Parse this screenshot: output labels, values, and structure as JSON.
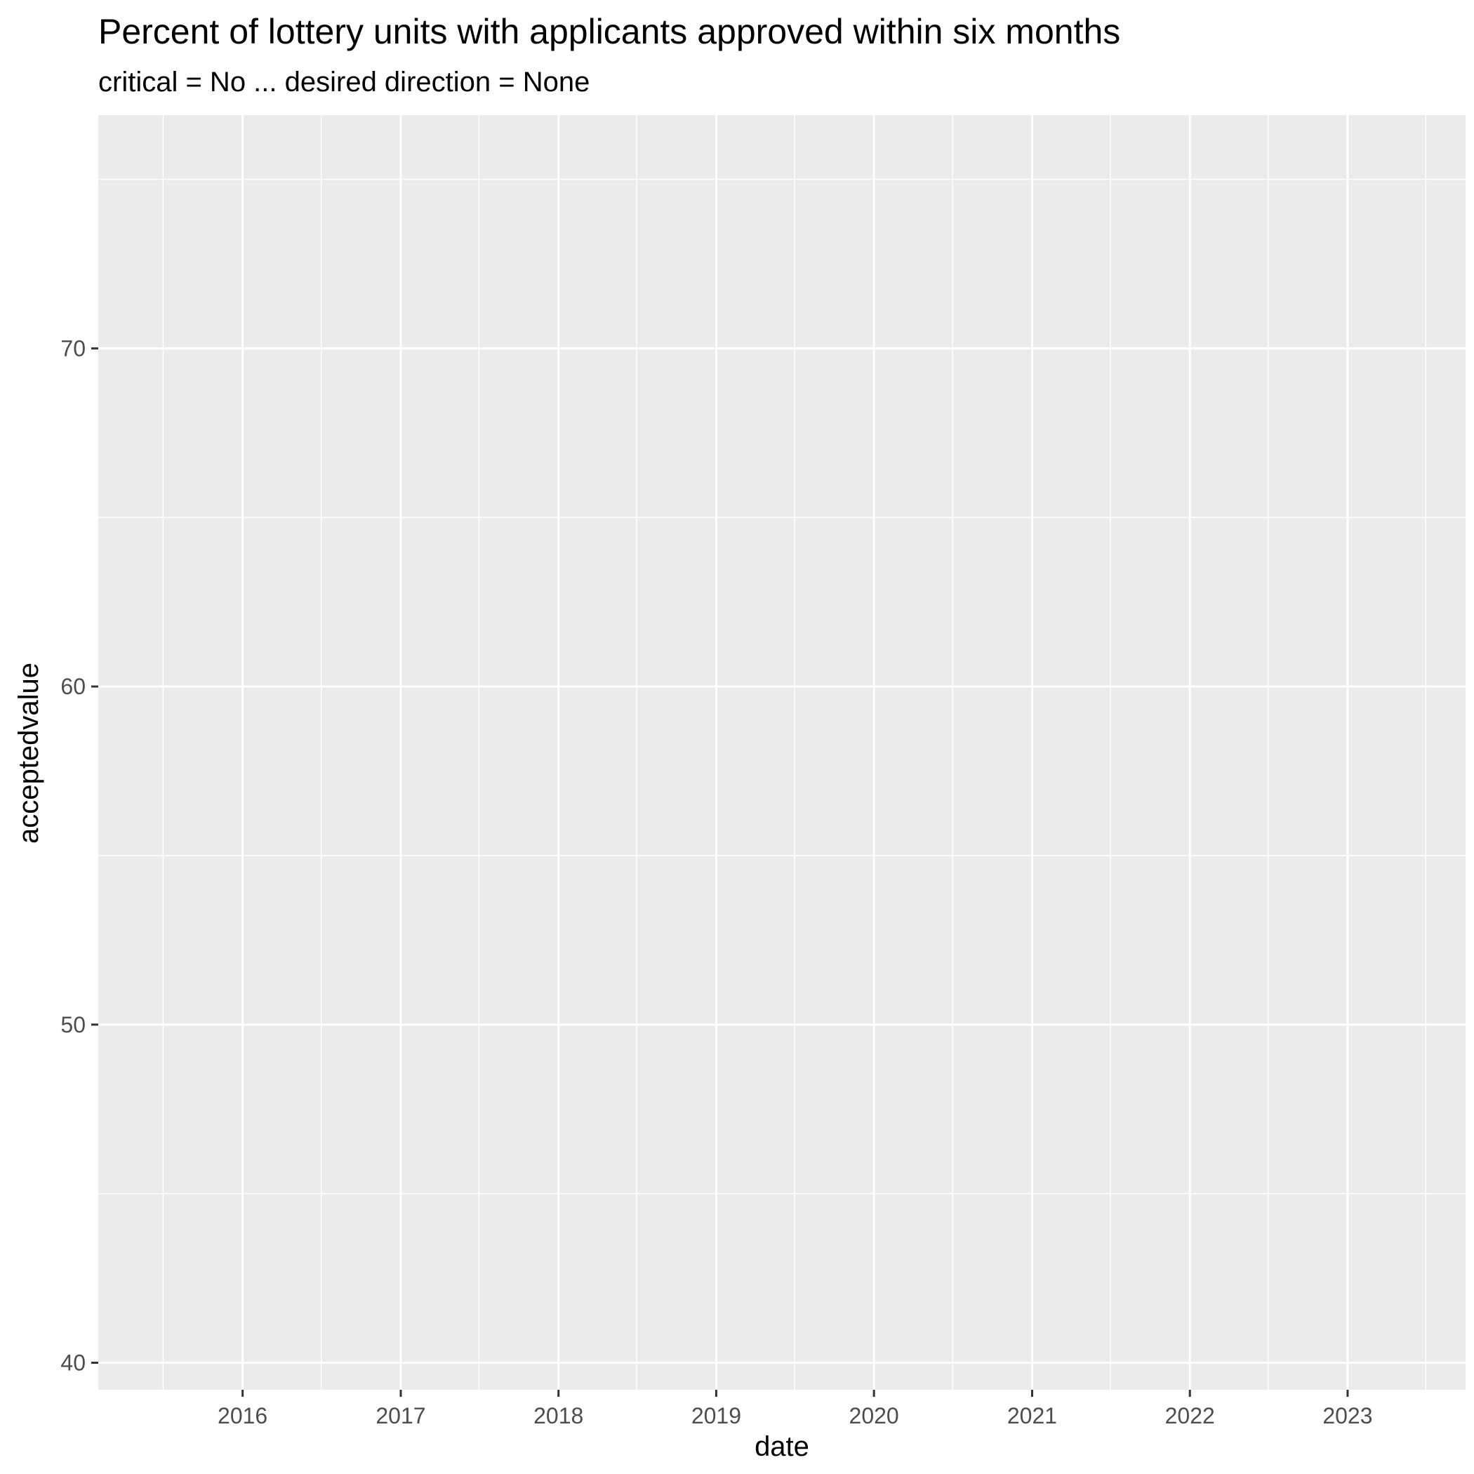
{
  "chart_data": {
    "type": "line",
    "title": "Percent of lottery units with applicants approved within six months",
    "subtitle": "critical = No ... desired direction = None",
    "xlabel": "date",
    "ylabel": "acceptedvalue",
    "x_ticks": [
      "2016",
      "2017",
      "2018",
      "2019",
      "2020",
      "2021",
      "2022",
      "2023"
    ],
    "y_ticks": [
      40,
      50,
      60,
      70
    ],
    "xlim": [
      "2015-02-01",
      "2023-10-01"
    ],
    "ylim": [
      39.2,
      76.9
    ],
    "series": [],
    "grid": true,
    "legend": "none",
    "colors": {
      "panel_background": "#ebebeb",
      "grid_major": "#ffffff",
      "grid_minor": "#ffffff",
      "tick_text": "#4d4d4d",
      "tick_mark": "#333333",
      "text": "#000000"
    }
  }
}
